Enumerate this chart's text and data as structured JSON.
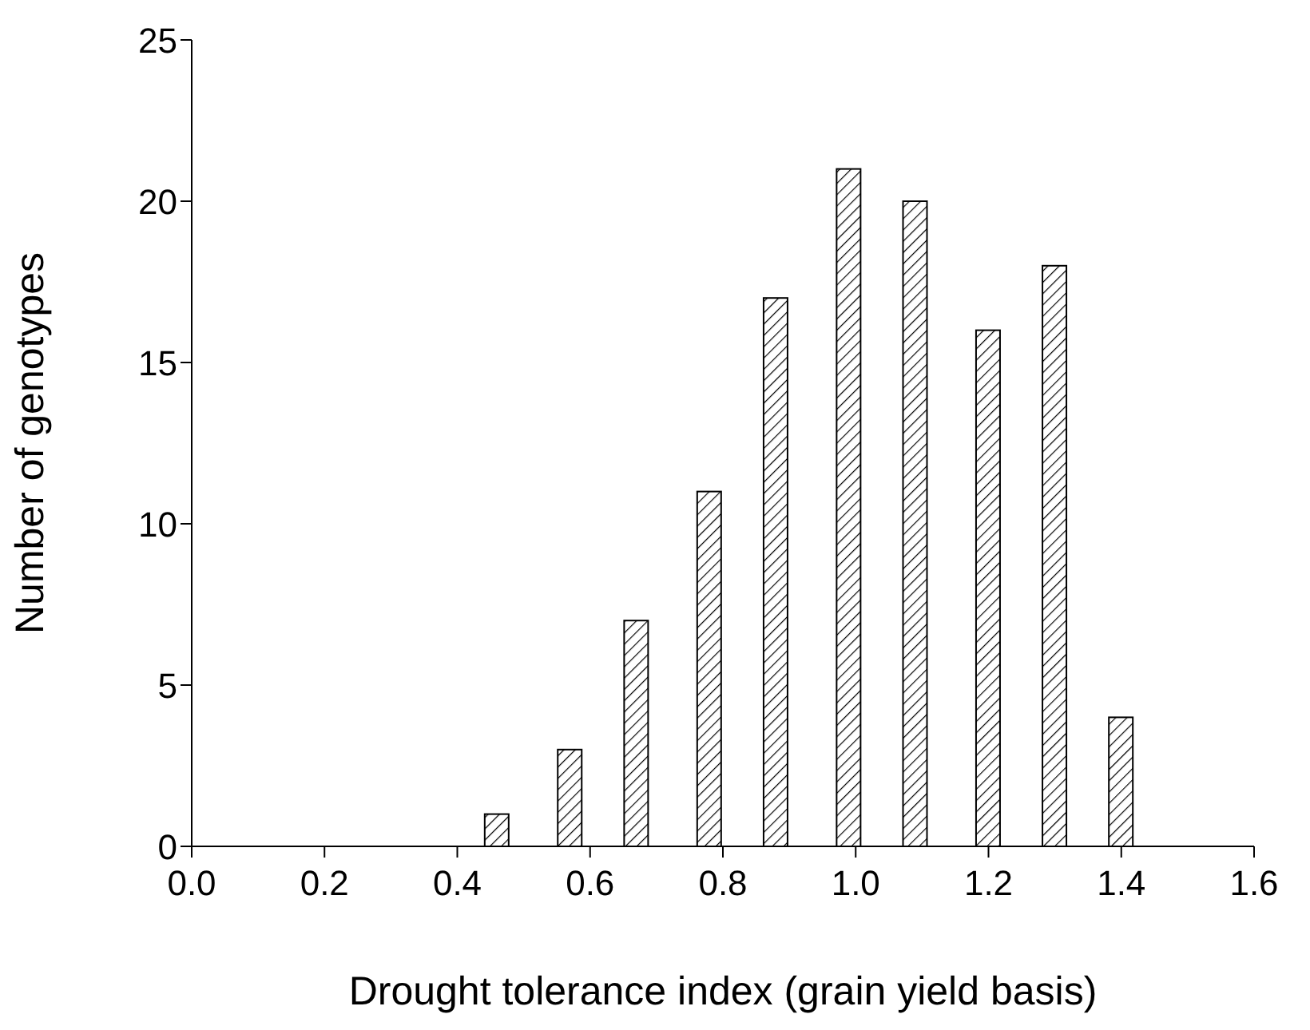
{
  "chart_data": {
    "type": "bar",
    "xlabel": "Drought tolerance index (grain yield basis)",
    "ylabel": "Number of genotypes",
    "x": [
      0.46,
      0.57,
      0.67,
      0.78,
      0.88,
      0.99,
      1.09,
      1.2,
      1.3,
      1.4
    ],
    "values": [
      1,
      3,
      7,
      11,
      17,
      21,
      20,
      16,
      18,
      4
    ],
    "color": "#000000",
    "xlim": [
      0,
      1.6
    ],
    "xticks": [
      {
        "value": 0,
        "label": "0.0"
      },
      0.2,
      0.4,
      0.6,
      0.8,
      {
        "value": 1,
        "label": "1.0"
      },
      1.2,
      1.4,
      1.6
    ],
    "ylim": [
      0,
      25
    ],
    "yticks": [
      0,
      5,
      10,
      15,
      20,
      25
    ],
    "grid": false,
    "legend": false
  }
}
